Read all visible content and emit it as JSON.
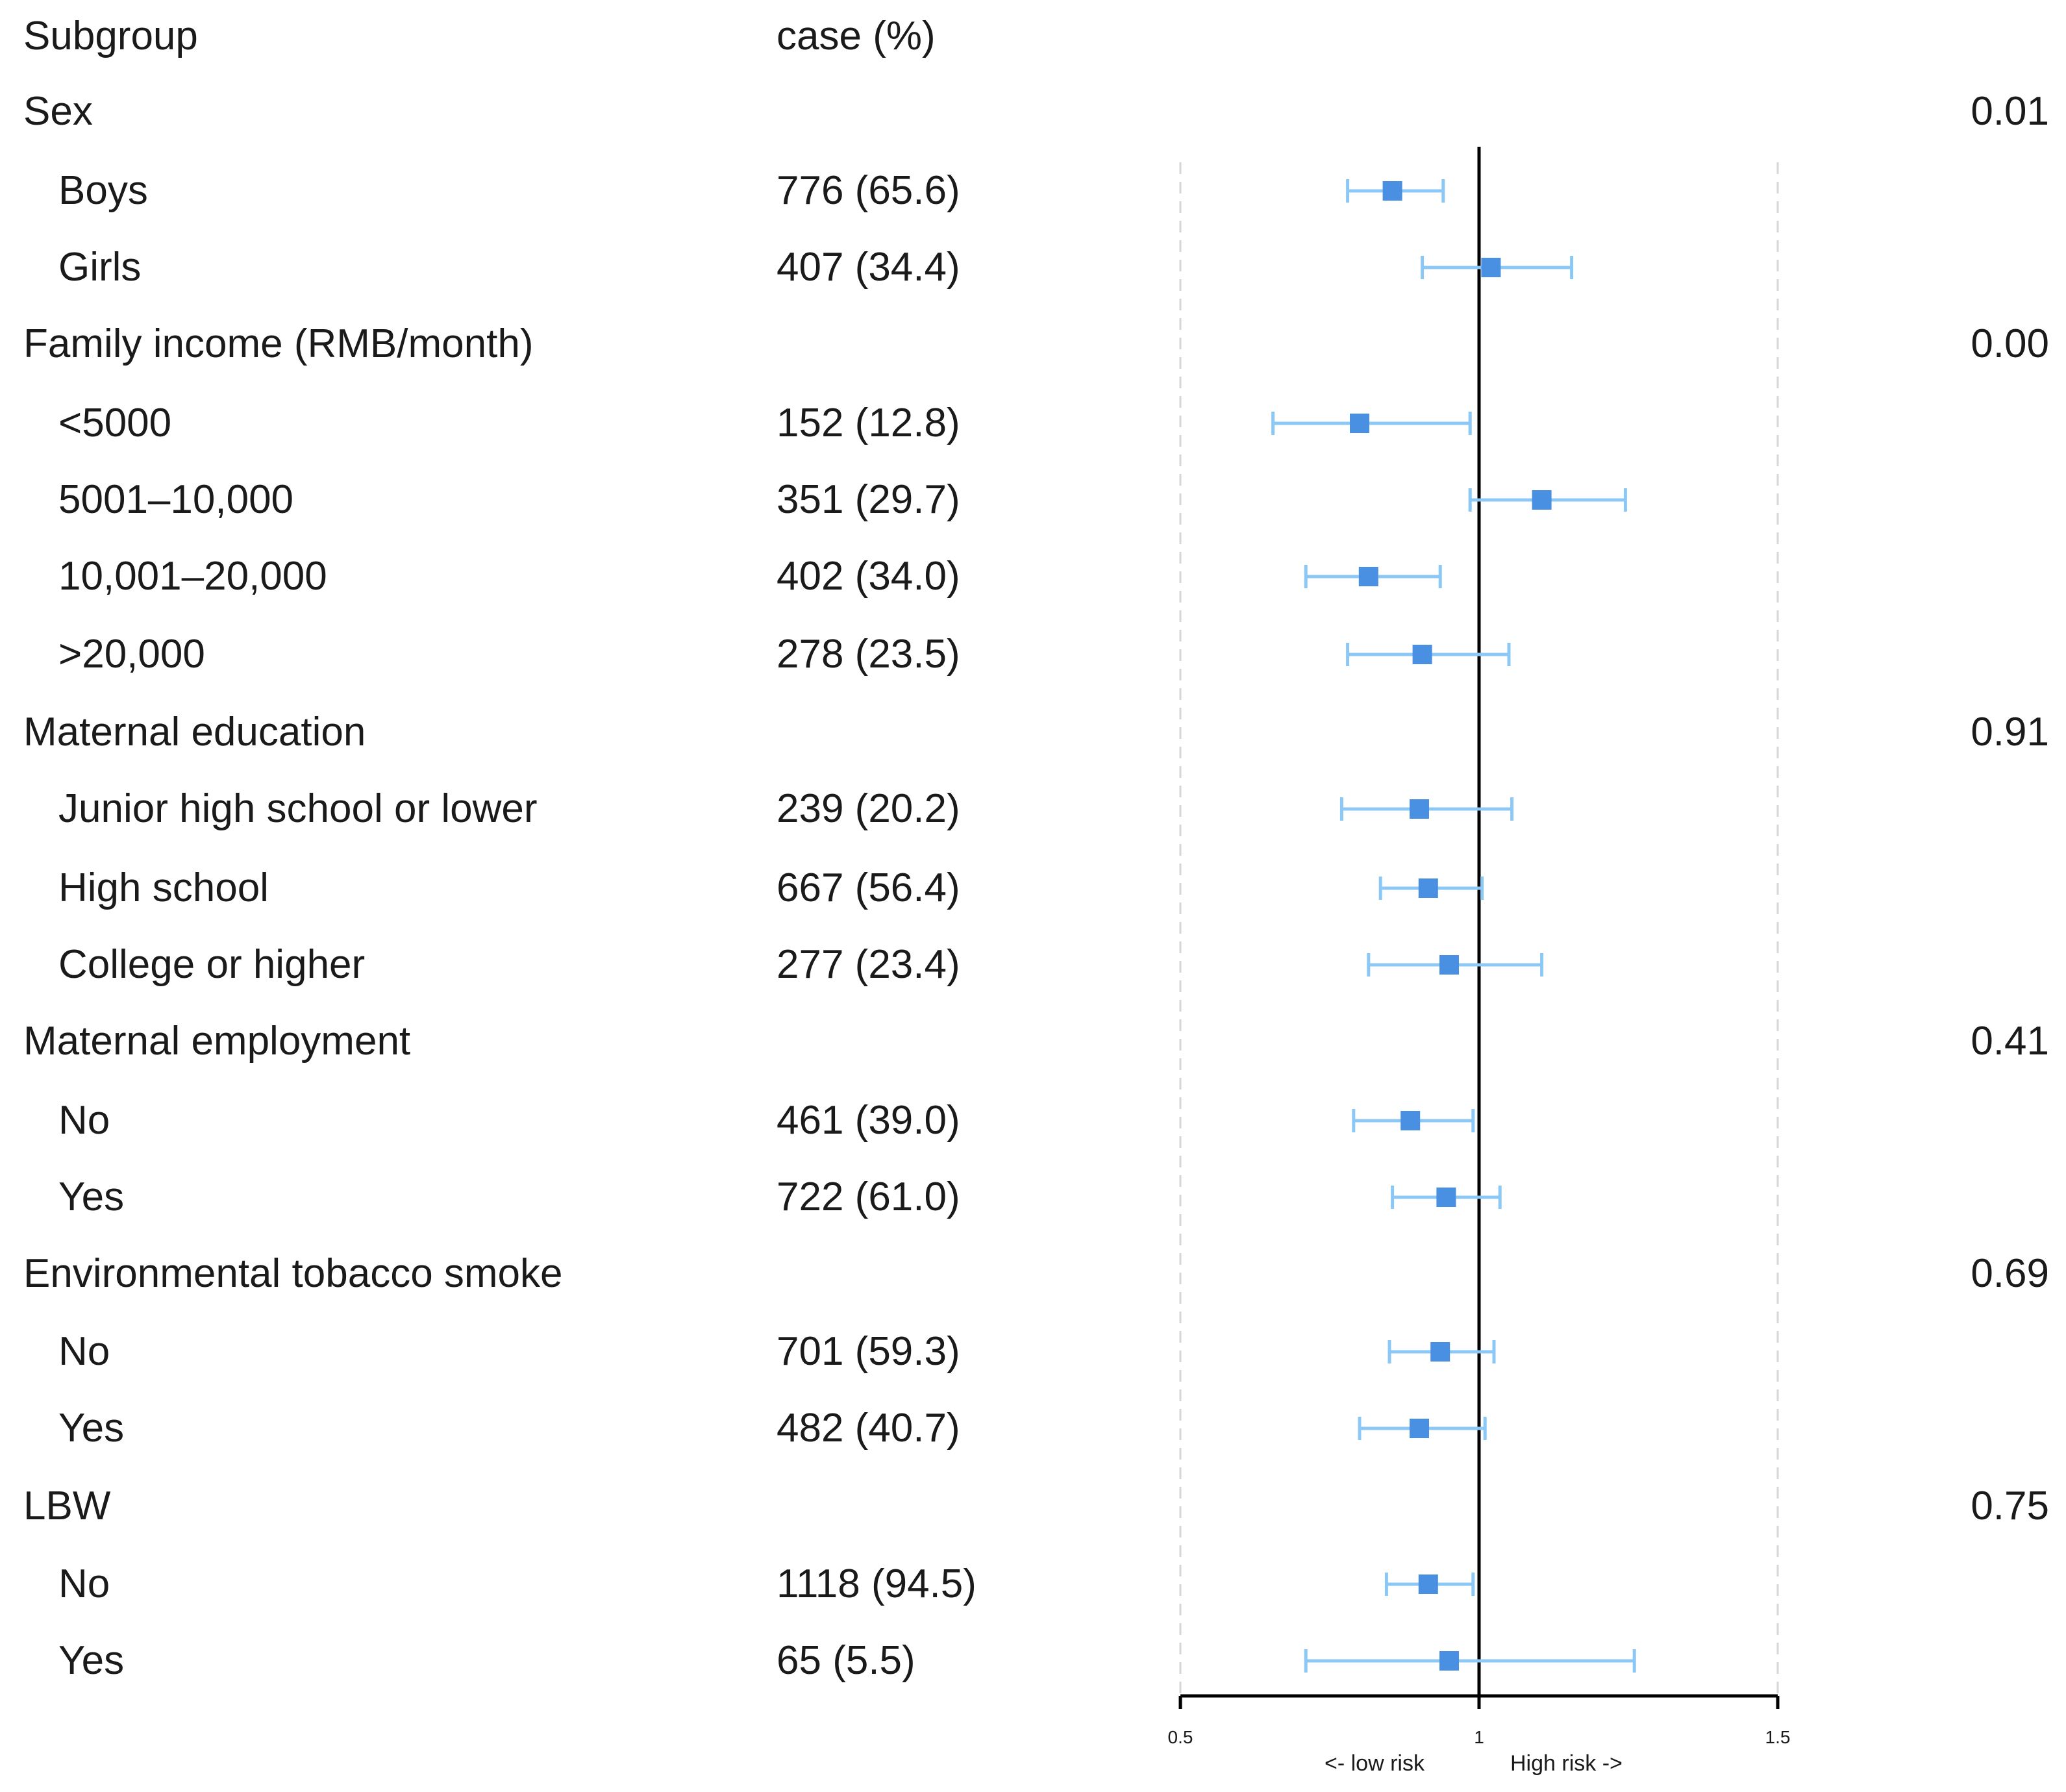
{
  "header": {
    "subgroup_label": "Subgroup",
    "case_label": "case (%)"
  },
  "rows": [
    {
      "label": "Sex",
      "pvalue": "0.01",
      "level": "group"
    },
    {
      "label": "Boys",
      "cases": "776 (65.6)",
      "level": "sub"
    },
    {
      "label": "Girls",
      "cases": "407 (34.4)",
      "level": "sub"
    },
    {
      "label": "Family income (RMB/month)",
      "pvalue": "0.00",
      "level": "group"
    },
    {
      "label": "<5000",
      "cases": "152 (12.8)",
      "level": "sub"
    },
    {
      "label": "5001–10,000",
      "cases": "351 (29.7)",
      "level": "sub"
    },
    {
      "label": "10,001–20,000",
      "cases": "402 (34.0)",
      "level": "sub"
    },
    {
      "label": ">20,000",
      "cases": "278 (23.5)",
      "level": "sub"
    },
    {
      "label": "Maternal education",
      "pvalue": "0.91",
      "level": "group"
    },
    {
      "label": "Junior high school or lower",
      "cases": "239 (20.2)",
      "level": "sub"
    },
    {
      "label": "High school",
      "cases": "667 (56.4)",
      "level": "sub"
    },
    {
      "label": "College or higher",
      "cases": "277 (23.4)",
      "level": "sub"
    },
    {
      "label": "Maternal employment",
      "pvalue": "0.41",
      "level": "group"
    },
    {
      "label": "No",
      "cases": "461 (39.0)",
      "level": "sub"
    },
    {
      "label": "Yes",
      "cases": "722 (61.0)",
      "level": "sub"
    },
    {
      "label": "Environmental tobacco smoke",
      "pvalue": "0.69",
      "level": "group"
    },
    {
      "label": "No",
      "cases": "701 (59.3)",
      "level": "sub"
    },
    {
      "label": "Yes",
      "cases": "482 (40.7)",
      "level": "sub"
    },
    {
      "label": "LBW",
      "pvalue": "0.75",
      "level": "group"
    },
    {
      "label": "No",
      "cases": "1118 (94.5)",
      "level": "sub"
    },
    {
      "label": "Yes",
      "cases": "65 (5.5)",
      "level": "sub"
    }
  ],
  "chart_data": {
    "type": "forest",
    "x_ticks": [
      0.5,
      1,
      1.5
    ],
    "x_tick_labels": [
      "0.5",
      "1",
      "1.5"
    ],
    "xlim": [
      0.5,
      1.5
    ],
    "reference_line": 1,
    "x_annotation_left": "<- low risk",
    "x_annotation_right": "High risk ->",
    "marker_color": "#4a90e2",
    "ci_color": "#8cc8f5",
    "estimates": [
      {
        "row": "Boys",
        "est": 0.855,
        "lo": 0.78,
        "hi": 0.94
      },
      {
        "row": "Girls",
        "est": 1.02,
        "lo": 0.905,
        "hi": 1.155
      },
      {
        "row": "<5000",
        "est": 0.8,
        "lo": 0.655,
        "hi": 0.985
      },
      {
        "row": "5001–10,000",
        "est": 1.105,
        "lo": 0.985,
        "hi": 1.245
      },
      {
        "row": "10,001–20,000",
        "est": 0.815,
        "lo": 0.71,
        "hi": 0.935
      },
      {
        "row": ">20,000",
        "est": 0.905,
        "lo": 0.78,
        "hi": 1.05
      },
      {
        "row": "Junior high school or lower",
        "est": 0.9,
        "lo": 0.77,
        "hi": 1.055
      },
      {
        "row": "High school",
        "est": 0.915,
        "lo": 0.835,
        "hi": 1.005
      },
      {
        "row": "College or higher",
        "est": 0.95,
        "lo": 0.815,
        "hi": 1.105
      },
      {
        "row": "No",
        "est": 0.885,
        "lo": 0.79,
        "hi": 0.99
      },
      {
        "row": "Yes",
        "est": 0.945,
        "lo": 0.855,
        "hi": 1.035
      },
      {
        "row": "No",
        "est": 0.935,
        "lo": 0.85,
        "hi": 1.025
      },
      {
        "row": "Yes",
        "est": 0.9,
        "lo": 0.8,
        "hi": 1.01
      },
      {
        "row": "No",
        "est": 0.915,
        "lo": 0.845,
        "hi": 0.99
      },
      {
        "row": "Yes",
        "est": 0.95,
        "lo": 0.71,
        "hi": 1.26
      }
    ]
  }
}
